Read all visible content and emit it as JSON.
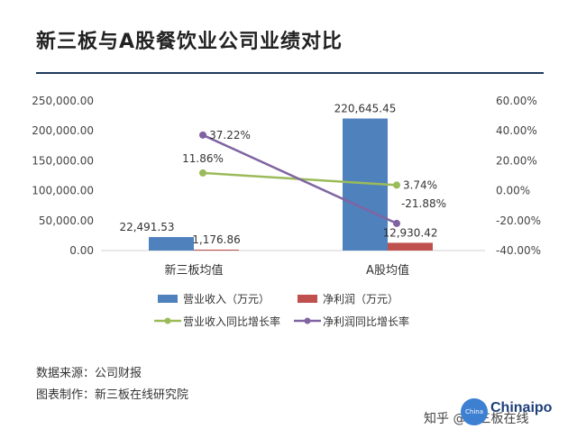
{
  "title": "新三板与A股餐饮业公司业绩对比",
  "source_line": "数据来源：公司财报",
  "maker_line": "图表制作：新三板在线研究院",
  "footer": {
    "logo_badge": "China",
    "logo_text": "Chinaipo",
    "zhihu": "知乎 @新三板在线"
  },
  "colors": {
    "revenue": "#4f81bd",
    "net_profit": "#c0504d",
    "revenue_growth": "#9bbb59",
    "profit_growth": "#8064a2",
    "title_rule": "#1f3a5f"
  },
  "chart_data": {
    "type": "bar",
    "title": "新三板与A股餐饮业公司业绩对比",
    "categories": [
      "新三板均值",
      "A股均值"
    ],
    "left_axis": {
      "ylim": [
        0,
        250000
      ],
      "ticks": [
        "0.00",
        "50,000.00",
        "100,000.00",
        "150,000.00",
        "200,000.00",
        "250,000.00"
      ],
      "tick_values": [
        0,
        50000,
        100000,
        150000,
        200000,
        250000
      ]
    },
    "right_axis": {
      "ylim": [
        -40,
        60
      ],
      "ticks": [
        "-40.00%",
        "-20.00%",
        "0.00%",
        "20.00%",
        "40.00%",
        "60.00%"
      ],
      "tick_values": [
        -40,
        -20,
        0,
        20,
        40,
        60
      ]
    },
    "bar_series": [
      {
        "name": "营业收入（万元）",
        "values": [
          22491.53,
          220645.45
        ],
        "labels": [
          "22,491.53",
          "220,645.45"
        ],
        "color": "#4f81bd"
      },
      {
        "name": "净利润（万元）",
        "values": [
          1176.86,
          12930.42
        ],
        "labels": [
          "1,176.86",
          "12,930.42"
        ],
        "color": "#c0504d"
      }
    ],
    "line_series": [
      {
        "name": "营业收入同比增长率",
        "values": [
          11.86,
          3.74
        ],
        "labels": [
          "11.86%",
          "3.74%"
        ],
        "color": "#9bbb59"
      },
      {
        "name": "净利润同比增长率",
        "values": [
          37.22,
          -21.88
        ],
        "labels": [
          "37.22%",
          "-21.88%"
        ],
        "color": "#8064a2"
      }
    ],
    "grid": false,
    "legend_position": "bottom"
  }
}
